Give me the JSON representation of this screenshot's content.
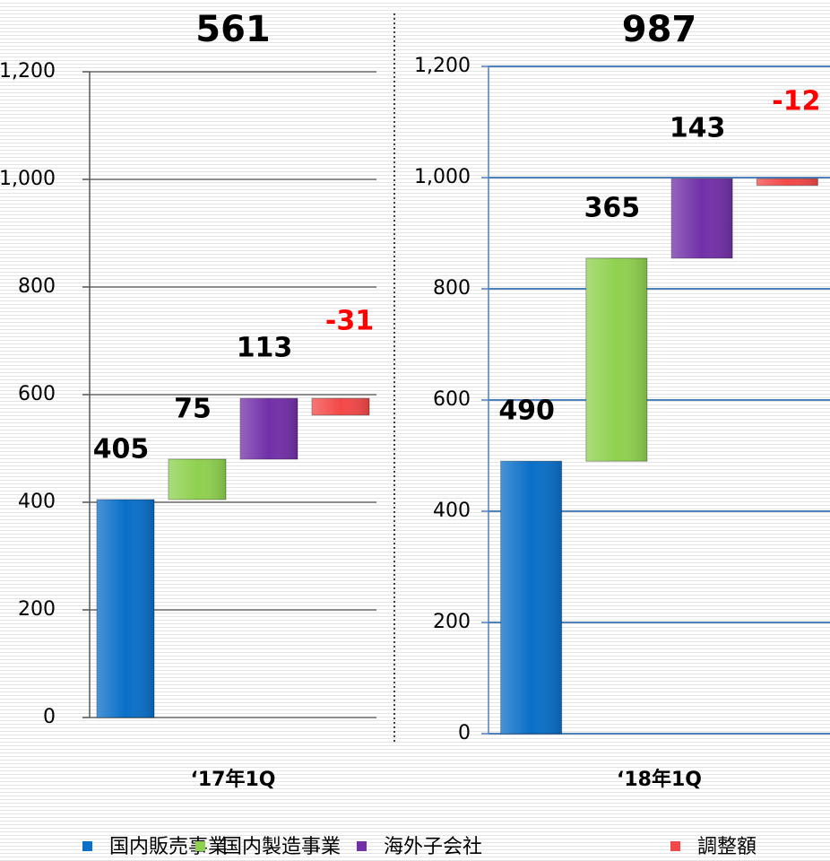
{
  "legend": [
    {
      "name": "国内販売事業",
      "color": "#0a6fc8"
    },
    {
      "name": "国内製造事業",
      "color": "#8fd14f"
    },
    {
      "name": "海外子会社",
      "color": "#7230a8"
    },
    {
      "name": "調整額",
      "color": "#f34848"
    }
  ],
  "chart_data": [
    {
      "type": "waterfall",
      "title": "561",
      "x_label": "‘17年1Q",
      "values": [
        405,
        75,
        113,
        -31
      ],
      "negative_label_color": "#ff0000",
      "ylim": [
        0,
        1200
      ],
      "yticks": [
        0,
        200,
        400,
        600,
        800,
        {
          "value": 1000,
          "label": "1,000"
        },
        {
          "value": 1200,
          "label": "1,200"
        }
      ],
      "grid": true,
      "grid_color": "#8c8c8c"
    },
    {
      "type": "waterfall",
      "title": "987",
      "x_label": "‘18年1Q",
      "values": [
        490,
        365,
        143,
        -12
      ],
      "negative_label_color": "#ff0000",
      "ylim": [
        0,
        1200
      ],
      "yticks": [
        0,
        200,
        400,
        600,
        800,
        {
          "value": 1000,
          "label": "1,000"
        },
        {
          "value": 1200,
          "label": "1,200"
        }
      ],
      "grid": true,
      "grid_color": "#4f81bd"
    }
  ]
}
